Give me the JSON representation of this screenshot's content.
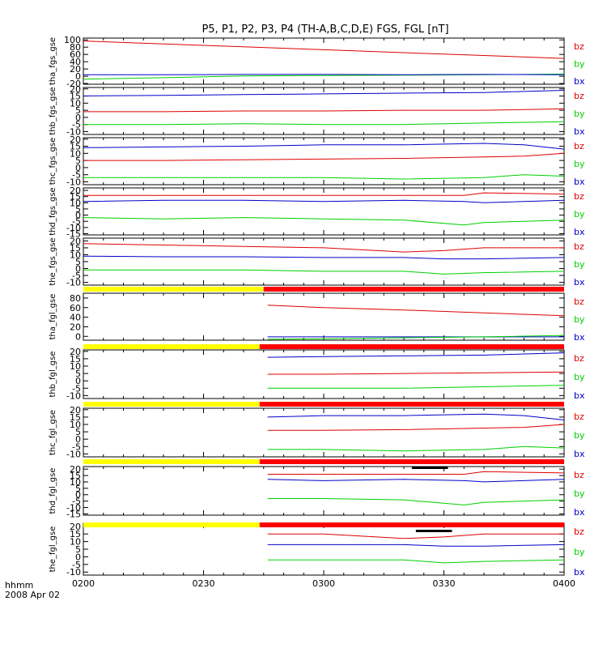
{
  "chart_data": {
    "type": "line",
    "title": "P5, P1, P2, P3, P4 (TH-A,B,C,D,E) FGS, FGL [nT]",
    "x_corner_labels": [
      "hhmm",
      "2008 Apr 02"
    ],
    "x_ticks": [
      "0200",
      "0230",
      "0300",
      "0330",
      "0400"
    ],
    "x_range": [
      0,
      120
    ],
    "colors": {
      "bz": "#e00000",
      "by": "#00d000",
      "bx": "#0000c8",
      "yellow": "#ffff00",
      "red": "#ff0000",
      "black": "#000000"
    },
    "panels": [
      {
        "ylabel": "tha_fgs_gse",
        "yticks": [
          "100",
          "80",
          "60",
          "40",
          "20",
          "0",
          "-20"
        ],
        "ytick_values": [
          100,
          80,
          60,
          40,
          20,
          0,
          -20
        ],
        "ylim": [
          -22,
          105
        ],
        "legend": [
          "bz",
          "by",
          "bx"
        ],
        "series": [
          {
            "name": "bz",
            "x": [
              0,
              20,
              40,
              60,
              80,
              100,
              120
            ],
            "y": [
              97,
              89,
              81,
              73,
              65,
              57,
              49
            ]
          },
          {
            "name": "by",
            "x": [
              0,
              20,
              40,
              60,
              80,
              100,
              120
            ],
            "y": [
              -8,
              -4,
              1,
              2,
              3,
              4,
              6
            ]
          },
          {
            "name": "bx",
            "x": [
              0,
              20,
              40,
              60,
              80,
              100,
              120
            ],
            "y": [
              4,
              4,
              5,
              5,
              4,
              5,
              4
            ]
          }
        ]
      },
      {
        "ylabel": "thb_fgs_gse",
        "yticks": [
          "20",
          "15",
          "10",
          "5",
          "0",
          "-5",
          "-10"
        ],
        "ytick_values": [
          20,
          15,
          10,
          5,
          0,
          -5,
          -10
        ],
        "ylim": [
          -12,
          21
        ],
        "legend": [
          "bz",
          "by",
          "bx"
        ],
        "series": [
          {
            "name": "bx",
            "x": [
              0,
              20,
              40,
              60,
              80,
              100,
              120
            ],
            "y": [
              15,
              15.5,
              16,
              16.5,
              17,
              17.5,
              19
            ]
          },
          {
            "name": "bz",
            "x": [
              0,
              20,
              40,
              60,
              80,
              100,
              120
            ],
            "y": [
              4,
              4,
              4.5,
              4.5,
              5,
              5,
              6
            ]
          },
          {
            "name": "by",
            "x": [
              0,
              20,
              40,
              60,
              80,
              100,
              120
            ],
            "y": [
              -5,
              -5,
              -4.5,
              -5,
              -5,
              -4,
              -3
            ]
          }
        ]
      },
      {
        "ylabel": "thc_fgs_gse",
        "yticks": [
          "20",
          "15",
          "10",
          "5",
          "0",
          "-5",
          "-10"
        ],
        "ytick_values": [
          20,
          15,
          10,
          5,
          0,
          -5,
          -10
        ],
        "ylim": [
          -12,
          21
        ],
        "legend": [
          "bz",
          "by",
          "bx"
        ],
        "series": [
          {
            "name": "bx",
            "x": [
              0,
              20,
              40,
              60,
              80,
              100,
              110,
              120
            ],
            "y": [
              14,
              14.5,
              15,
              16,
              16,
              17,
              16,
              13
            ]
          },
          {
            "name": "bz",
            "x": [
              0,
              20,
              40,
              60,
              80,
              100,
              110,
              120
            ],
            "y": [
              5,
              5,
              5.5,
              6,
              6.5,
              7.5,
              8,
              10
            ]
          },
          {
            "name": "by",
            "x": [
              0,
              20,
              40,
              60,
              80,
              100,
              110,
              120
            ],
            "y": [
              -7,
              -7,
              -7,
              -7,
              -8,
              -7,
              -5,
              -6
            ]
          }
        ]
      },
      {
        "ylabel": "thd_fgs_gse",
        "yticks": [
          "20",
          "15",
          "10",
          "5",
          "0",
          "-5",
          "-10",
          "-15"
        ],
        "ytick_values": [
          20,
          15,
          10,
          5,
          0,
          -5,
          -10,
          -15
        ],
        "ylim": [
          -16,
          22
        ],
        "legend": [
          "bz",
          "by",
          "bx"
        ],
        "series": [
          {
            "name": "bz",
            "x": [
              0,
              20,
              40,
              60,
              80,
              95,
              100,
              120
            ],
            "y": [
              16,
              16,
              16,
              16,
              16,
              16,
              18,
              17
            ]
          },
          {
            "name": "bx",
            "x": [
              0,
              20,
              40,
              60,
              80,
              95,
              100,
              120
            ],
            "y": [
              11,
              12,
              12,
              11,
              12,
              11,
              10,
              12
            ]
          },
          {
            "name": "by",
            "x": [
              0,
              20,
              40,
              60,
              80,
              95,
              100,
              120
            ],
            "y": [
              -2,
              -3,
              -2,
              -3,
              -4,
              -8,
              -6,
              -4
            ]
          }
        ]
      },
      {
        "ylabel": "the_fgs_gse",
        "yticks": [
          "20",
          "15",
          "10",
          "5",
          "0",
          "-5",
          "-10"
        ],
        "ytick_values": [
          20,
          15,
          10,
          5,
          0,
          -5,
          -10
        ],
        "ylim": [
          -12,
          22
        ],
        "legend": [
          "bz",
          "by",
          "bx"
        ],
        "series": [
          {
            "name": "bz",
            "x": [
              0,
              20,
              40,
              60,
              80,
              90,
              100,
              120
            ],
            "y": [
              18,
              17,
              16,
              15,
              12,
              13,
              15,
              15
            ]
          },
          {
            "name": "bx",
            "x": [
              0,
              20,
              40,
              60,
              80,
              90,
              100,
              120
            ],
            "y": [
              9,
              8.5,
              8.5,
              8,
              8,
              7,
              7,
              8
            ]
          },
          {
            "name": "by",
            "x": [
              0,
              20,
              40,
              60,
              80,
              90,
              100,
              120
            ],
            "y": [
              -1,
              -1,
              -1,
              -2,
              -2,
              -4,
              -3,
              -2
            ]
          }
        ]
      },
      {
        "ylabel": "tha_fgl_gse",
        "yticks": [
          "80",
          "60",
          "40",
          "20",
          "0"
        ],
        "ytick_values": [
          80,
          60,
          40,
          20,
          0
        ],
        "ylim": [
          -8,
          90
        ],
        "legend": [
          "bz",
          "by",
          "bx"
        ],
        "series": [
          {
            "name": "bz",
            "x": [
              46,
              60,
              80,
              100,
              120
            ],
            "y": [
              65,
              60,
              55,
              49,
              43
            ]
          },
          {
            "name": "bx",
            "x": [
              46,
              60,
              80,
              100,
              120
            ],
            "y": [
              -1,
              -1,
              -1,
              -1,
              -1
            ]
          },
          {
            "name": "by",
            "x": [
              46,
              60,
              80,
              100,
              120
            ],
            "y": [
              -6,
              -5,
              -3,
              -1,
              2
            ]
          }
        ]
      },
      {
        "ylabel": "thb_fgl_gse",
        "yticks": [
          "20",
          "15",
          "10",
          "5",
          "0",
          "-5",
          "-10"
        ],
        "ytick_values": [
          20,
          15,
          10,
          5,
          0,
          -5,
          -10
        ],
        "ylim": [
          -12,
          21
        ],
        "legend": [
          "bz",
          "by",
          "bx"
        ],
        "series": [
          {
            "name": "bx",
            "x": [
              46,
              60,
              80,
              100,
              120
            ],
            "y": [
              16,
              16.5,
              17,
              17.5,
              19
            ]
          },
          {
            "name": "bz",
            "x": [
              46,
              60,
              80,
              100,
              120
            ],
            "y": [
              4.5,
              4.5,
              5,
              5.5,
              6
            ]
          },
          {
            "name": "by",
            "x": [
              46,
              60,
              80,
              100,
              120
            ],
            "y": [
              -5,
              -5,
              -5,
              -4,
              -3
            ]
          }
        ]
      },
      {
        "ylabel": "thc_fgl_gse",
        "yticks": [
          "20",
          "15",
          "10",
          "5",
          "0",
          "-5",
          "-10"
        ],
        "ytick_values": [
          20,
          15,
          10,
          5,
          0,
          -5,
          -10
        ],
        "ylim": [
          -12,
          21
        ],
        "legend": [
          "bz",
          "by",
          "bx"
        ],
        "series": [
          {
            "name": "bx",
            "x": [
              46,
              60,
              80,
              100,
              110,
              120
            ],
            "y": [
              15,
              16,
              16,
              17,
              16,
              13
            ]
          },
          {
            "name": "bz",
            "x": [
              46,
              60,
              80,
              100,
              110,
              120
            ],
            "y": [
              6,
              6,
              6.5,
              7.5,
              8,
              10
            ]
          },
          {
            "name": "by",
            "x": [
              46,
              60,
              80,
              100,
              110,
              120
            ],
            "y": [
              -7,
              -7,
              -8,
              -7,
              -5,
              -6
            ]
          }
        ]
      },
      {
        "ylabel": "thd_fgl_gse",
        "yticks": [
          "20",
          "15",
          "10",
          "5",
          "0",
          "-5",
          "-10",
          "-15"
        ],
        "ytick_values": [
          20,
          15,
          10,
          5,
          0,
          -5,
          -10,
          -15
        ],
        "ylim": [
          -16,
          22
        ],
        "legend": [
          "bz",
          "by",
          "bx"
        ],
        "series": [
          {
            "name": "bz",
            "x": [
              46,
              60,
              80,
              95,
              100,
              120
            ],
            "y": [
              16,
              16,
              16,
              16,
              18,
              17
            ]
          },
          {
            "name": "bx",
            "x": [
              46,
              60,
              80,
              95,
              100,
              120
            ],
            "y": [
              12,
              11,
              12,
              11,
              10,
              12
            ]
          },
          {
            "name": "by",
            "x": [
              46,
              60,
              80,
              95,
              100,
              120
            ],
            "y": [
              -3,
              -3,
              -4,
              -8,
              -6,
              -4
            ]
          }
        ]
      },
      {
        "ylabel": "the_fgl_gse",
        "yticks": [
          "20",
          "15",
          "10",
          "5",
          "0",
          "-5",
          "-10"
        ],
        "ytick_values": [
          20,
          15,
          10,
          5,
          0,
          -5,
          -10
        ],
        "ylim": [
          -12,
          22
        ],
        "legend": [
          "bz",
          "by",
          "bx"
        ],
        "series": [
          {
            "name": "bz",
            "x": [
              46,
              60,
              80,
              90,
              100,
              120
            ],
            "y": [
              15,
              15,
              12,
              13,
              15,
              15
            ]
          },
          {
            "name": "bx",
            "x": [
              46,
              60,
              80,
              90,
              100,
              120
            ],
            "y": [
              8,
              8,
              8,
              7,
              7,
              8
            ]
          },
          {
            "name": "by",
            "x": [
              46,
              60,
              80,
              90,
              100,
              120
            ],
            "y": [
              -2,
              -2,
              -2,
              -4,
              -3,
              -2
            ]
          }
        ]
      }
    ],
    "mode_bars": [
      {
        "segments": [
          {
            "x0": 0,
            "x1": 45,
            "color": "yellow"
          },
          {
            "x0": 45,
            "x1": 120,
            "color": "red"
          }
        ]
      },
      {
        "segments": [
          {
            "x0": 0,
            "x1": 44,
            "color": "yellow"
          },
          {
            "x0": 44,
            "x1": 120,
            "color": "red"
          }
        ]
      },
      {
        "segments": [
          {
            "x0": 0,
            "x1": 44,
            "color": "yellow"
          },
          {
            "x0": 44,
            "x1": 120,
            "color": "red"
          }
        ]
      },
      {
        "segments": [
          {
            "x0": 0,
            "x1": 44,
            "color": "yellow"
          },
          {
            "x0": 44,
            "x1": 120,
            "color": "red"
          }
        ],
        "marks": [
          {
            "x0": 82,
            "x1": 91
          }
        ]
      },
      {
        "segments": [
          {
            "x0": 0,
            "x1": 44,
            "color": "yellow"
          },
          {
            "x0": 44,
            "x1": 120,
            "color": "red"
          }
        ],
        "marks": [
          {
            "x0": 83,
            "x1": 92
          }
        ]
      }
    ]
  }
}
